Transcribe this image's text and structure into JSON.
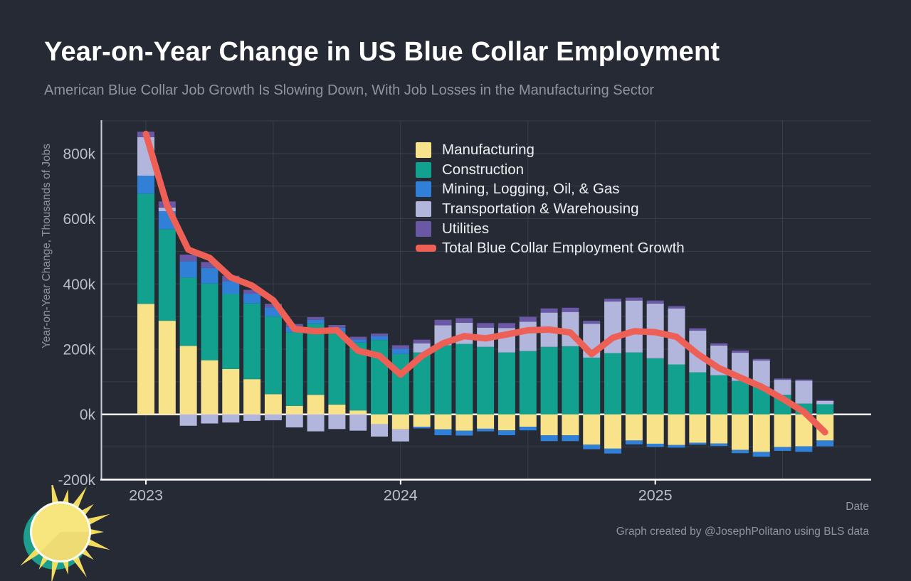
{
  "header": {
    "title": "Year-on-Year Change in US Blue Collar Employment",
    "subtitle": "American Blue Collar Job Growth Is Slowing Down, With Job Losses in the Manufacturing Sector"
  },
  "footer": {
    "credit": "Graph created by @JosephPolitano using BLS data"
  },
  "colors": {
    "background": "#262a34",
    "grid": "#3a3f4c",
    "zero_line": "#ffffff",
    "left_spine": "#c9cdd5",
    "bottom_spine": "#ffffff",
    "tick_label": "#b9bec8",
    "muted_text": "#8e95a2",
    "title_text": "#ffffff",
    "legend_text": "#edeff2",
    "logo_teal": "#1d9d8b",
    "logo_yellow": "#f7e57e",
    "logo_ray": "#f2dc60"
  },
  "chart_data": {
    "type": "bar",
    "stacked": true,
    "title": "Year-on-Year Change in US Blue Collar Employment",
    "subtitle": "American Blue Collar Job Growth Is Slowing Down, With Job Losses in the Manufacturing Sector",
    "xlabel": "Date",
    "ylabel": "Year-on-Year Change, Thousands of Jobs",
    "units": "thousands of jobs",
    "ylim": [
      -200,
      900
    ],
    "grid": {
      "visible": true,
      "y_step": 100,
      "x_lines_every_months": 6
    },
    "legend_position": "upper-center-inside",
    "categories": [
      "Jan 2023",
      "Feb 2023",
      "Mar 2023",
      "Apr 2023",
      "May 2023",
      "Jun 2023",
      "Jul 2023",
      "Aug 2023",
      "Sep 2023",
      "Oct 2023",
      "Nov 2023",
      "Dec 2023",
      "Jan 2024",
      "Feb 2024",
      "Mar 2024",
      "Apr 2024",
      "May 2024",
      "Jun 2024",
      "Jul 2024",
      "Aug 2024",
      "Sep 2024",
      "Oct 2024",
      "Nov 2024",
      "Dec 2024",
      "Jan 2025",
      "Feb 2025",
      "Mar 2025",
      "Apr 2025",
      "May 2025",
      "Jun 2025",
      "Jul 2025",
      "Aug 2025",
      "Sep 2025"
    ],
    "series": [
      {
        "name": "Manufacturing",
        "color": "#f8e28a",
        "values": [
          339,
          287,
          210,
          166,
          139,
          108,
          62,
          26,
          60,
          30,
          12,
          -30,
          -46,
          -38,
          -46,
          -50,
          -44,
          -49,
          -38,
          -64,
          -64,
          -93,
          -105,
          -80,
          -90,
          -94,
          -87,
          -89,
          -109,
          -115,
          -100,
          -98,
          -80
        ]
      },
      {
        "name": "Construction",
        "color": "#12a18e",
        "values": [
          338,
          281,
          210,
          235,
          230,
          232,
          238,
          226,
          218,
          224,
          208,
          228,
          185,
          190,
          212,
          216,
          207,
          190,
          194,
          207,
          209,
          174,
          188,
          190,
          172,
          153,
          129,
          120,
          103,
          85,
          60,
          33,
          31
        ]
      },
      {
        "name": "Mining, Logging, Oil, & Gas",
        "color": "#3180d8",
        "values": [
          55,
          55,
          50,
          48,
          40,
          30,
          28,
          16,
          12,
          12,
          10,
          12,
          16,
          -5,
          -18,
          -15,
          -8,
          -15,
          -11,
          -18,
          -18,
          -14,
          -15,
          -12,
          -10,
          -8,
          -6,
          -8,
          -10,
          -15,
          -12,
          -17,
          -18
        ]
      },
      {
        "name": "Transportation & Warehousing",
        "color": "#b2b6dd",
        "values": [
          118,
          11,
          -35,
          -28,
          -25,
          -20,
          -18,
          -40,
          -52,
          -45,
          -50,
          -38,
          -37,
          28,
          61,
          65,
          59,
          75,
          90,
          105,
          105,
          104,
          158,
          159,
          168,
          172,
          128,
          91,
          86,
          80,
          46,
          70,
          10
        ]
      },
      {
        "name": "Utilities",
        "color": "#6a58a6",
        "values": [
          17,
          19,
          20,
          18,
          16,
          12,
          11,
          9,
          8,
          8,
          8,
          8,
          11,
          11,
          17,
          14,
          14,
          15,
          15,
          13,
          13,
          9,
          9,
          9,
          9,
          7,
          7,
          7,
          7,
          5,
          4,
          4,
          3
        ]
      }
    ],
    "total_line": {
      "name": "Total Blue Collar Employment Growth",
      "color": "#ee6055",
      "values": [
        860,
        640,
        505,
        480,
        420,
        395,
        350,
        262,
        255,
        258,
        195,
        180,
        122,
        179,
        218,
        240,
        233,
        245,
        258,
        260,
        251,
        185,
        235,
        255,
        252,
        238,
        185,
        142,
        113,
        85,
        48,
        8,
        -55
      ]
    },
    "y_ticks": [
      {
        "value": -200,
        "label": "-200k"
      },
      {
        "value": 0,
        "label": "0k"
      },
      {
        "value": 200,
        "label": "200k"
      },
      {
        "value": 400,
        "label": "400k"
      },
      {
        "value": 600,
        "label": "600k"
      },
      {
        "value": 800,
        "label": "800k"
      }
    ],
    "x_ticks": [
      {
        "index": 0,
        "label": "2023"
      },
      {
        "index": 12,
        "label": "2024"
      },
      {
        "index": 24,
        "label": "2025"
      }
    ]
  }
}
